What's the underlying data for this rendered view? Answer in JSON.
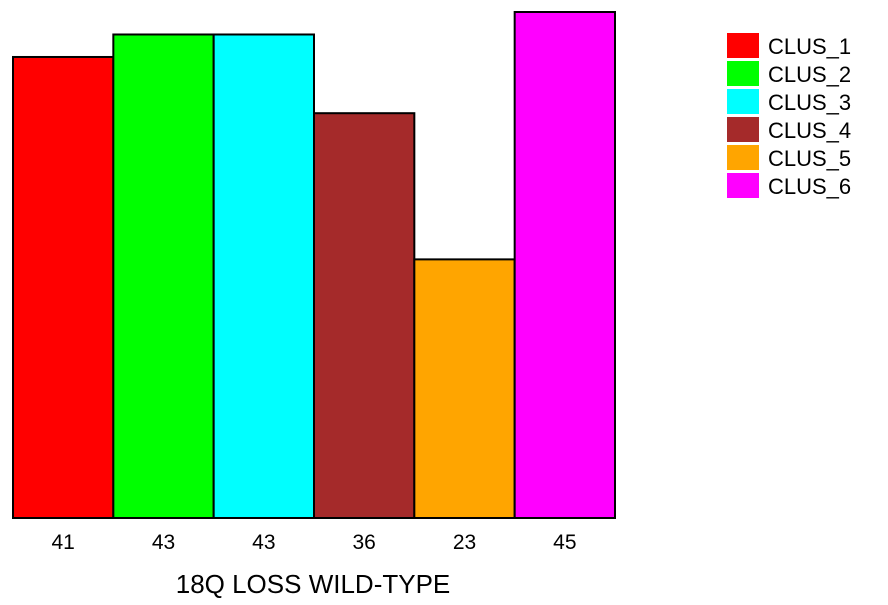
{
  "chart_data": {
    "type": "bar",
    "title": "",
    "xlabel": "18Q LOSS WILD-TYPE",
    "ylabel": "",
    "categories": [
      "CLUS_1",
      "CLUS_2",
      "CLUS_3",
      "CLUS_4",
      "CLUS_5",
      "CLUS_6"
    ],
    "values": [
      41,
      43,
      43,
      36,
      23,
      45
    ],
    "data_labels": [
      "41",
      "43",
      "43",
      "36",
      "23",
      "45"
    ],
    "colors": [
      "#ff0000",
      "#00ff00",
      "#00ffff",
      "#a52a2a",
      "#ffa500",
      "#ff00ff"
    ],
    "ylim": [
      0,
      45
    ],
    "grid": false,
    "legend": {
      "placement": "top-right",
      "entries": [
        "CLUS_1",
        "CLUS_2",
        "CLUS_3",
        "CLUS_4",
        "CLUS_5",
        "CLUS_6"
      ]
    }
  }
}
